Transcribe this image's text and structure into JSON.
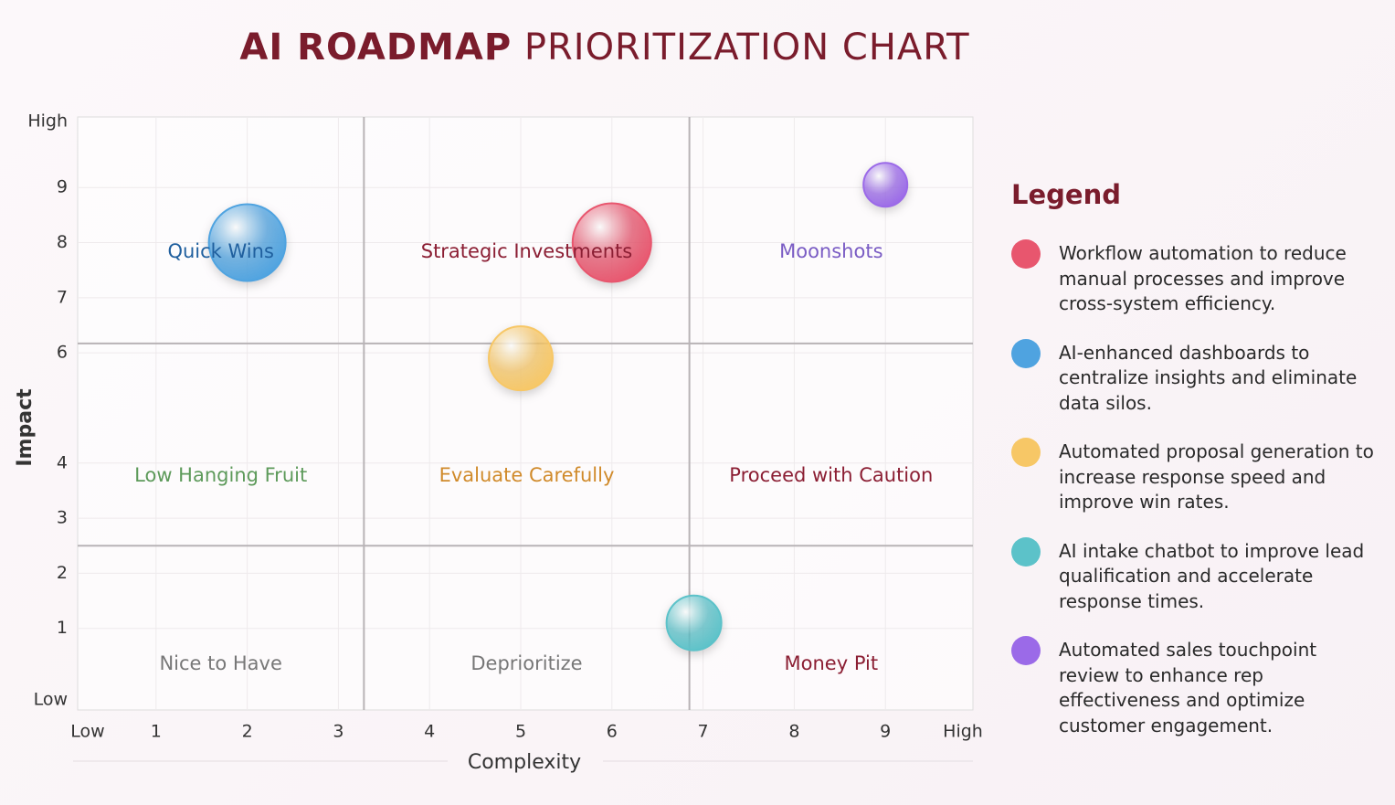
{
  "chart_data": {
    "type": "bubble",
    "title": [
      "AI ROADMAP",
      "PRIORITIZATION CHART"
    ],
    "xlabel": "Complexity",
    "ylabel": "Impact",
    "xlim": [
      0.14,
      9.96
    ],
    "ylim": [
      -0.48,
      10.28
    ],
    "xticks": [
      {
        "value": 0.25,
        "label": "Low"
      },
      1,
      2,
      3,
      4,
      5,
      6,
      7,
      8,
      9,
      {
        "value": 9.85,
        "label": "High"
      }
    ],
    "yticks": [
      {
        "value": -0.3,
        "label": "Low"
      },
      1,
      2,
      3,
      4,
      6,
      7,
      8,
      9,
      {
        "value": 10.2,
        "label": "High"
      }
    ],
    "grid": true,
    "dividers": {
      "x": [
        3.28,
        6.85
      ],
      "y": [
        6.17,
        2.5
      ]
    },
    "quadrants": [
      [
        {
          "name": "Quick Wins",
          "color": "#1f5f9e"
        },
        {
          "name": "Strategic Investments",
          "color": "#8b1e33"
        },
        {
          "name": "Moonshots",
          "color": "#7a5cc4"
        }
      ],
      [
        {
          "name": "Low Hanging Fruit",
          "color": "#5d9a5a"
        },
        {
          "name": "Evaluate Carefully",
          "color": "#d08a2a"
        },
        {
          "name": "Proceed with Caution",
          "color": "#8b1e33"
        }
      ],
      [
        {
          "name": "Nice to Have",
          "color": "#777777"
        },
        {
          "name": "Deprioritize",
          "color": "#777777"
        },
        {
          "name": "Money Pit",
          "color": "#8b1e33"
        }
      ]
    ],
    "legend_title": "Legend",
    "series": [
      {
        "name": "Workflow automation to reduce manual processes and improve cross-system efficiency.",
        "color": "#e8566e",
        "x": 6,
        "y": 8,
        "size": 43
      },
      {
        "name": "AI-enhanced dashboards to centralize insights and eliminate data silos.",
        "color": "#4fa3e0",
        "x": 2,
        "y": 8,
        "size": 42
      },
      {
        "name": "Automated proposal generation to increase response speed and improve win rates.",
        "color": "#f7c766",
        "x": 5,
        "y": 5.9,
        "size": 35
      },
      {
        "name": "AI intake chatbot to improve lead qualification and accelerate response times.",
        "color": "#5cc2c9",
        "x": 6.9,
        "y": 1.1,
        "size": 30
      },
      {
        "name": "Automated sales touchpoint review to enhance rep effectiveness and optimize customer engagement.",
        "color": "#9b6ae8",
        "x": 9,
        "y": 9.05,
        "size": 24
      }
    ]
  }
}
